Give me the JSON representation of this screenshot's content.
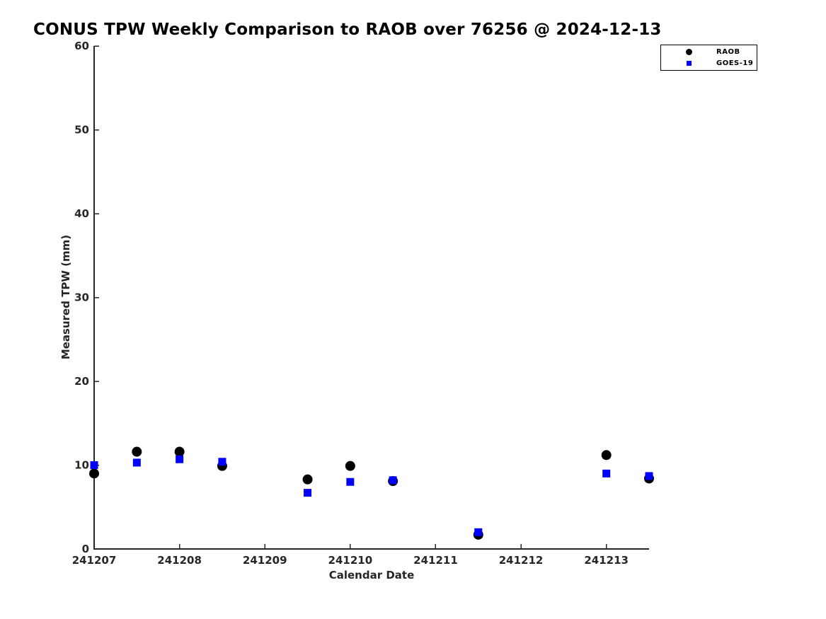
{
  "figure": {
    "background": "#ffffff",
    "axis_color": "#262626",
    "title_color": "#000000"
  },
  "chart_data": {
    "type": "scatter",
    "title": "CONUS TPW Weekly Comparison to RAOB over 76256 @ 2024-12-13",
    "xlabel": "Calendar Date",
    "ylabel": "Measured TPW (mm)",
    "xlim": [
      241207,
      241213.5
    ],
    "ylim": [
      0,
      60
    ],
    "grid": false,
    "x_ticks": [
      {
        "value": 241207,
        "label": "241207"
      },
      {
        "value": 241208,
        "label": "241208"
      },
      {
        "value": 241209,
        "label": "241209"
      },
      {
        "value": 241210,
        "label": "241210"
      },
      {
        "value": 241211,
        "label": "241211"
      },
      {
        "value": 241212,
        "label": "241212"
      },
      {
        "value": 241213,
        "label": "241213"
      }
    ],
    "y_ticks": [
      {
        "value": 0,
        "label": "0"
      },
      {
        "value": 10,
        "label": "10"
      },
      {
        "value": 20,
        "label": "20"
      },
      {
        "value": 30,
        "label": "30"
      },
      {
        "value": 40,
        "label": "40"
      },
      {
        "value": 50,
        "label": "50"
      },
      {
        "value": 60,
        "label": "60"
      }
    ],
    "legend": {
      "position": "top-right",
      "entries": [
        {
          "label": "RAOB",
          "marker": "circle",
          "color": "#000000"
        },
        {
          "label": "GOES-19",
          "marker": "square",
          "color": "#0000ff"
        }
      ]
    },
    "series": [
      {
        "name": "RAOB",
        "marker": "circle",
        "color": "#000000",
        "points": [
          [
            241207.0,
            9.0
          ],
          [
            241207.5,
            11.6
          ],
          [
            241208.0,
            11.6
          ],
          [
            241208.5,
            9.9
          ],
          [
            241209.5,
            8.3
          ],
          [
            241210.0,
            9.9
          ],
          [
            241210.5,
            8.1
          ],
          [
            241211.5,
            1.7
          ],
          [
            241213.0,
            11.2
          ],
          [
            241213.5,
            8.4
          ]
        ]
      },
      {
        "name": "GOES-19",
        "marker": "square",
        "color": "#0000ff",
        "points": [
          [
            241207.0,
            10.0
          ],
          [
            241207.5,
            10.3
          ],
          [
            241208.0,
            10.7
          ],
          [
            241208.5,
            10.4
          ],
          [
            241209.5,
            6.7
          ],
          [
            241210.0,
            8.0
          ],
          [
            241210.5,
            8.2
          ],
          [
            241211.5,
            2.0
          ],
          [
            241213.0,
            9.0
          ],
          [
            241213.5,
            8.7
          ]
        ]
      }
    ]
  }
}
